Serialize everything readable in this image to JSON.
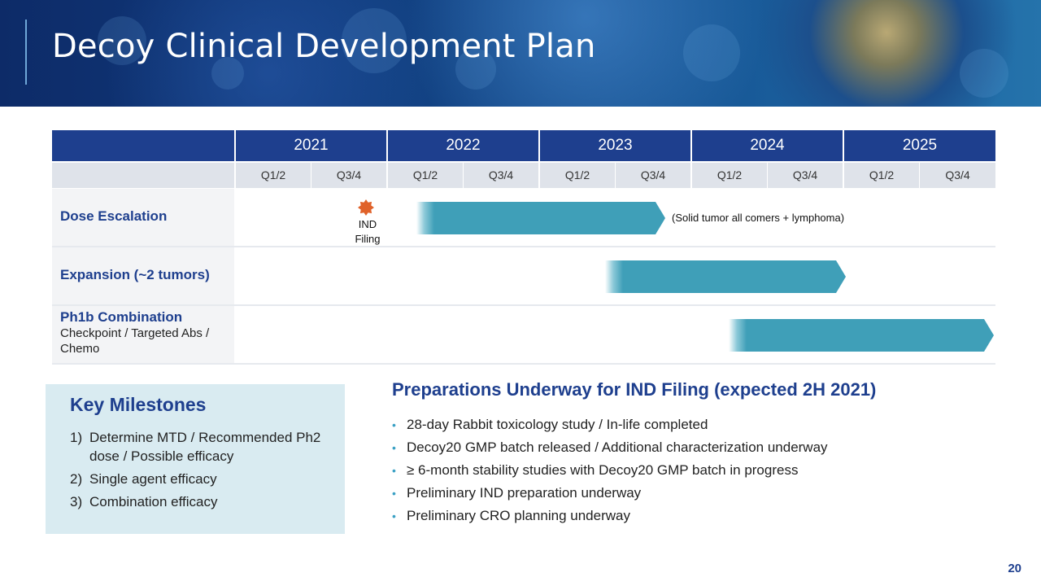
{
  "header": {
    "title": "Decoy Clinical Development Plan"
  },
  "gantt": {
    "years": [
      "2021",
      "2022",
      "2023",
      "2024",
      "2025"
    ],
    "quarters": [
      "Q1/2",
      "Q3/4",
      "Q1/2",
      "Q3/4",
      "Q1/2",
      "Q3/4",
      "Q1/2",
      "Q3/4",
      "Q1/2",
      "Q3/4"
    ],
    "rows": [
      {
        "label": "Dose Escalation",
        "sublabel": "",
        "start_period": "2022 Q1/2",
        "end_period": "2023 Q3/4",
        "note": "(Solid tumor  all comers + lymphoma)"
      },
      {
        "label": "Expansion  (~2 tumors)",
        "sublabel": "",
        "start_period": "2023 Q3/4",
        "end_period": "2024 Q3/4",
        "note": ""
      },
      {
        "label": "Ph1b Combination",
        "sublabel": "Checkpoint / Targeted Abs / Chemo",
        "start_period": "2024 Q1/2",
        "end_period": "2025 Q3/4",
        "note": ""
      }
    ],
    "milestone_marker": {
      "label_line1": "IND",
      "label_line2": "Filing",
      "color": "#e0622a"
    },
    "colors": {
      "header": "#1e3f8e",
      "bar": "#3f9fb8",
      "quarter_bg": "#dfe3ea"
    }
  },
  "milestones": {
    "title": "Key Milestones",
    "items": [
      {
        "num": "1)",
        "text": "Determine MTD / Recommended Ph2 dose / Possible efficacy"
      },
      {
        "num": "2)",
        "text": "Single agent efficacy"
      },
      {
        "num": "3)",
        "text": "Combination efficacy"
      }
    ]
  },
  "preparations": {
    "title": "Preparations Underway for IND Filing (expected 2H 2021)",
    "items": [
      "28-day Rabbit toxicology study / In-life  completed",
      "Decoy20 GMP batch released / Additional characterization underway",
      "≥ 6-month stability studies with Decoy20 GMP batch in progress",
      "Preliminary IND preparation underway",
      "Preliminary CRO planning underway"
    ]
  },
  "page_number": "20"
}
